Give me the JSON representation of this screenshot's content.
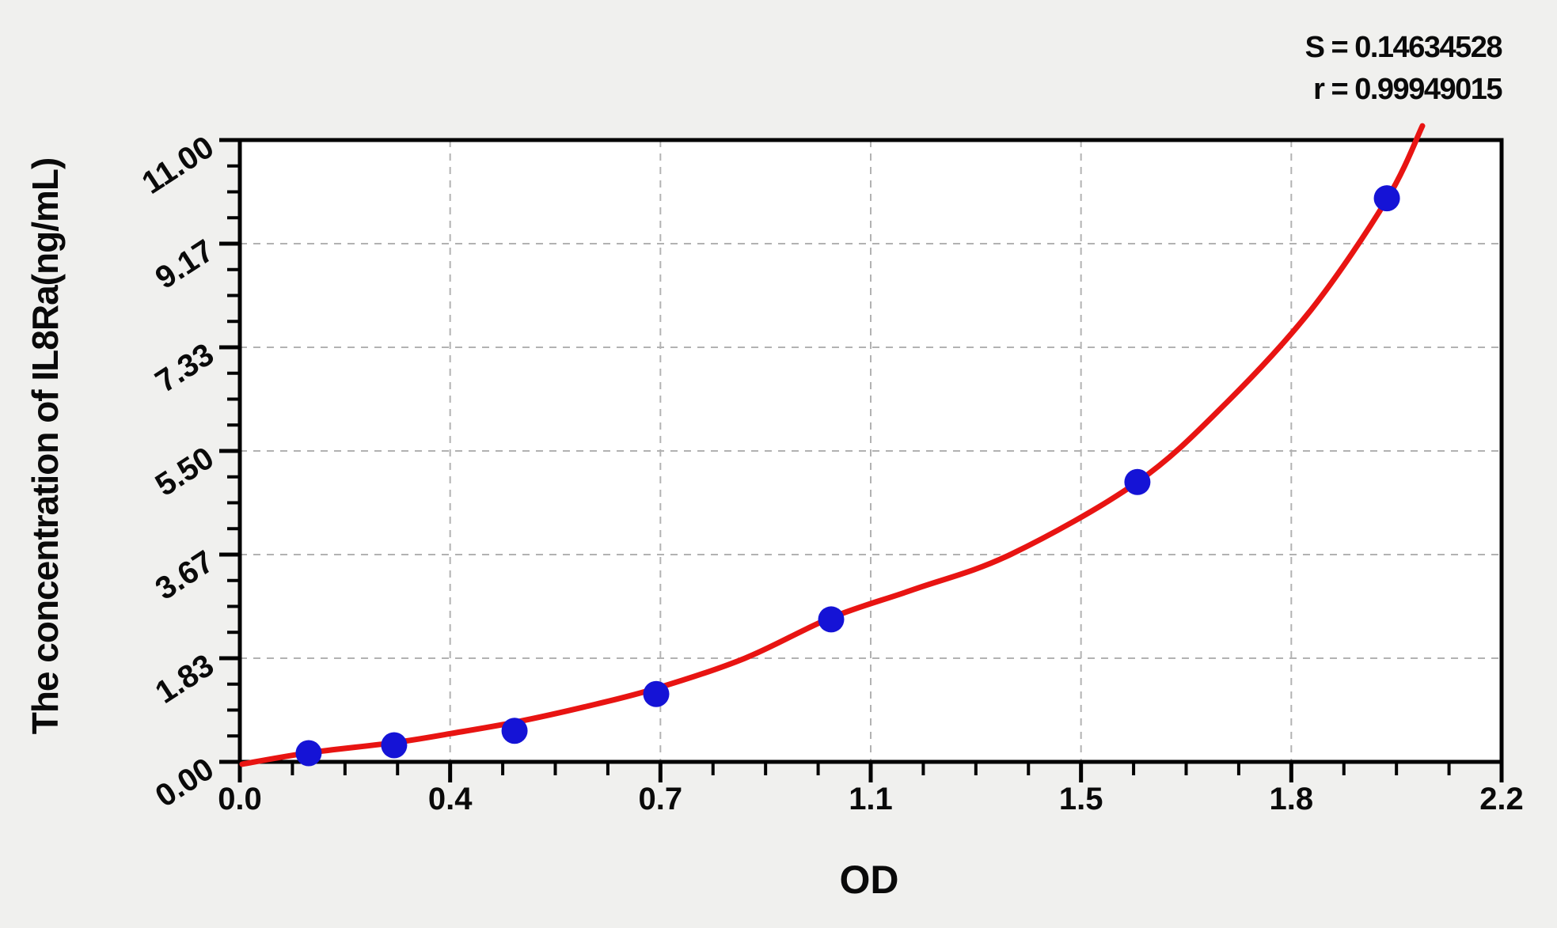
{
  "figure": {
    "background_color": "#f0f0ee",
    "plot_background_color": "#ffffff"
  },
  "chart_data": {
    "type": "scatter",
    "title": "",
    "xlabel": "OD",
    "ylabel": "The concentration of IL8Ra(ng/mL)",
    "xlim": [
      0,
      2.2
    ],
    "ylim": [
      0,
      11
    ],
    "grid": {
      "show": true,
      "style": "dashed",
      "color": "#b2b2b2"
    },
    "legend": {
      "show": false
    },
    "stats": {
      "s_label": "S = 0.14634528",
      "r_label": "r = 0.99949015"
    },
    "x_axis": {
      "major_ticks": [
        0,
        0.36667,
        0.73333,
        1.1,
        1.46667,
        1.83333,
        2.2
      ],
      "tick_labels": [
        "0.0",
        "0.4",
        "0.7",
        "1.1",
        "1.5",
        "1.8",
        "2.2"
      ],
      "minor_per_major": 3
    },
    "y_axis": {
      "major_ticks": [
        0,
        1.83333,
        3.66667,
        5.5,
        7.33333,
        9.16667,
        11
      ],
      "tick_labels": [
        "0.00",
        "1.83",
        "3.67",
        "5.50",
        "7.33",
        "9.17",
        "11.00"
      ],
      "minor_per_major": 3
    },
    "series": [
      {
        "name": "standard points",
        "type": "scatter",
        "color": "#1513d6",
        "marker_radius": 16.5,
        "x": [
          0.12,
          0.269,
          0.479,
          0.726,
          1.031,
          1.565,
          2.0
        ],
        "y": [
          0.154,
          0.294,
          0.55,
          1.2,
          2.52,
          4.95,
          9.97
        ]
      }
    ],
    "fit_curve": {
      "name": "fitted standard curve",
      "color": "#e81412",
      "line_width": 7,
      "points": [
        [
          0.004,
          -0.04
        ],
        [
          0.12,
          0.16
        ],
        [
          0.269,
          0.34
        ],
        [
          0.367,
          0.5
        ],
        [
          0.479,
          0.7
        ],
        [
          0.6,
          0.97
        ],
        [
          0.726,
          1.3
        ],
        [
          0.88,
          1.83
        ],
        [
          1.031,
          2.55
        ],
        [
          1.175,
          3.05
        ],
        [
          1.344,
          3.67
        ],
        [
          1.565,
          4.95
        ],
        [
          1.72,
          6.35
        ],
        [
          1.868,
          8.0
        ],
        [
          2.0,
          9.95
        ],
        [
          2.062,
          11.25
        ]
      ]
    }
  }
}
